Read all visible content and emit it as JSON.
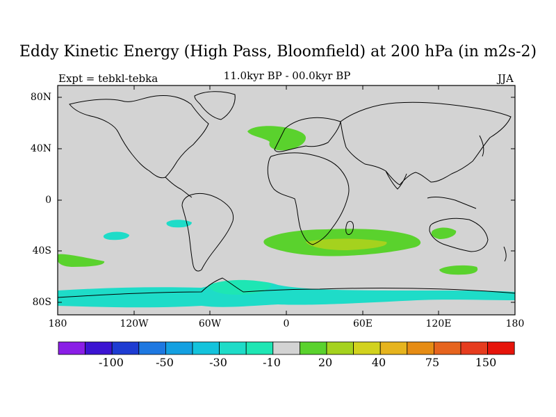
{
  "title": "Eddy Kinetic Energy (High Pass, Bloomfield) at 200 hPa (in m2s-2)",
  "subtitle_left": "Expt = tebkl-tebka",
  "subtitle_center": "11.0kyr BP - 00.0kyr BP",
  "subtitle_right": "JJA",
  "lat_labels": [
    "80N",
    "40N",
    "0",
    "40S",
    "80S"
  ],
  "lon_labels": [
    "180",
    "120W",
    "60W",
    "0",
    "60E",
    "120E",
    "180"
  ],
  "colorbar": {
    "colors": [
      "#8a1ee6",
      "#3c14d2",
      "#1e3cd2",
      "#1e78e1",
      "#14a0e1",
      "#14c3dc",
      "#1edcc8",
      "#1ee6b4",
      "#d3d3d3",
      "#5ad22d",
      "#a5d21e",
      "#d2d21e",
      "#e6b41e",
      "#e68c14",
      "#e6641e",
      "#e63c1e",
      "#e6140a"
    ],
    "labels": [
      "-100",
      "-50",
      "-30",
      "-10",
      "20",
      "40",
      "75",
      "150"
    ]
  },
  "colors": {
    "land_ocean_background": "#d3d3d3",
    "cyan_anomaly": "#1edcc8",
    "light_cyan_anomaly": "#1ee6b4",
    "green_anomaly": "#5ad22d",
    "yellowgreen_anomaly": "#a5d21e",
    "coastline": "#000000"
  }
}
